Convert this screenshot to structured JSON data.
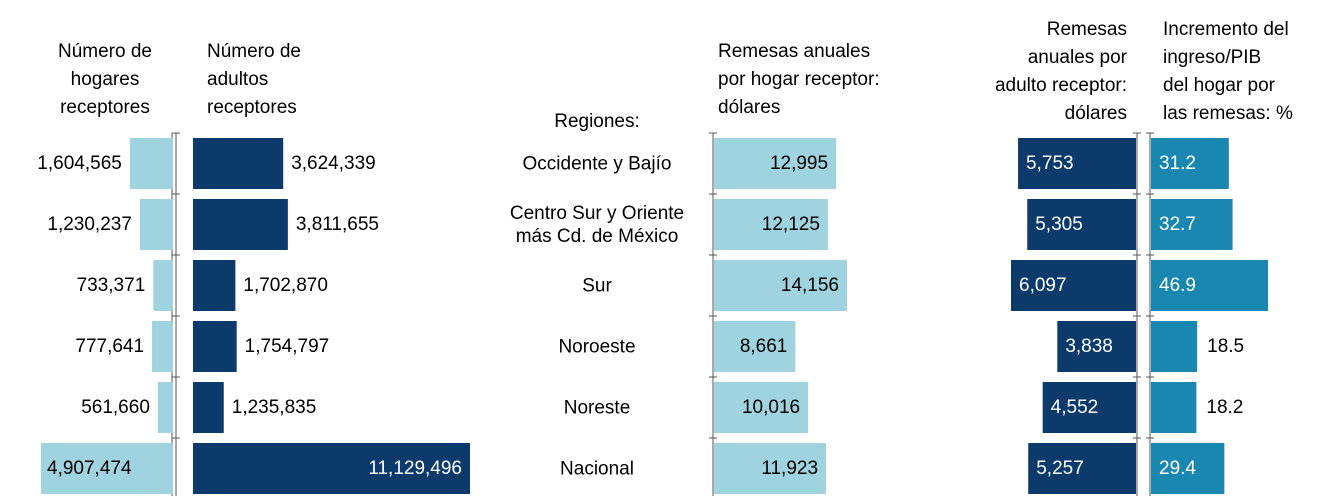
{
  "chart_data": {
    "type": "bar",
    "category_label": "Regiones:",
    "categories": [
      "Occidente y Bajío",
      "Centro Sur y Oriente\nmás Cd. de México",
      "Sur",
      "Noroeste",
      "Noreste",
      "Nacional"
    ],
    "series": [
      {
        "name": "Número de\nhogares\nreceptores",
        "color": "#9fd3e0",
        "values": [
          1604565,
          1230237,
          733371,
          777641,
          561660,
          4907474
        ],
        "value_labels": [
          "1,604,565",
          "1,230,237",
          "733,371",
          "777,641",
          "561,660",
          "4,907,474"
        ]
      },
      {
        "name": "Número de\nadultos\nreceptores",
        "color": "#0b3a6b",
        "values": [
          3624339,
          3811655,
          1702870,
          1754797,
          1235835,
          11129496
        ],
        "value_labels": [
          "3,624,339",
          "3,811,655",
          "1,702,870",
          "1,754,797",
          "1,235,835",
          "11,129,496"
        ]
      },
      {
        "name": "Remesas anuales\npor hogar receptor:\ndólares",
        "color": "#9fd3e0",
        "values": [
          12995,
          12125,
          14156,
          8661,
          10016,
          11923
        ],
        "value_labels": [
          "12,995",
          "12,125",
          "14,156",
          "8,661",
          "10,016",
          "11,923"
        ]
      },
      {
        "name": "Remesas\nanuales por\nadulto receptor:\ndólares",
        "color": "#0b3a6b",
        "values": [
          5753,
          5305,
          6097,
          3838,
          4552,
          5257
        ],
        "value_labels": [
          "5,753",
          "5,305",
          "6,097",
          "3,838",
          "4,552",
          "5,257"
        ]
      },
      {
        "name": "Incremento del\ningreso/PIB\ndel hogar por\nlas remesas: %",
        "color": "#1a87b0",
        "values": [
          31.2,
          32.7,
          46.9,
          18.5,
          18.2,
          29.4
        ]
      }
    ]
  }
}
